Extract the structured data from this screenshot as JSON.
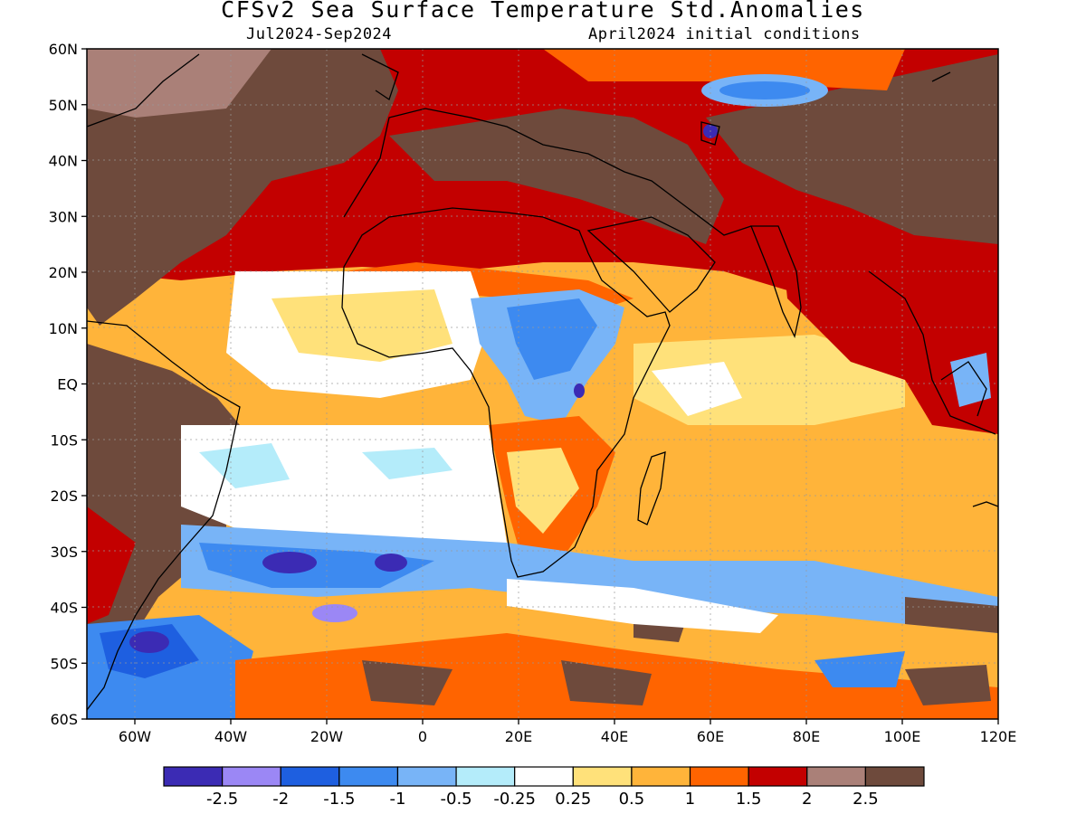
{
  "header": {
    "title": "CFSv2 Sea Surface Temperature Std.Anomalies",
    "period": "Jul2024-Sep2024",
    "initial_conditions": "April2024 initial conditions"
  },
  "axes": {
    "lat_labels": [
      "60N",
      "50N",
      "40N",
      "30N",
      "20N",
      "10N",
      "EQ",
      "10S",
      "20S",
      "30S",
      "40S",
      "50S",
      "60S"
    ],
    "lon_labels": [
      "60W",
      "40W",
      "20W",
      "0",
      "20E",
      "40E",
      "60E",
      "80E",
      "100E",
      "120E"
    ],
    "lon_range": [
      -70,
      120
    ],
    "lat_range": [
      -60,
      60
    ]
  },
  "colorbar": {
    "labels": [
      "-2.5",
      "-2",
      "-1.5",
      "-1",
      "-0.5",
      "-0.25",
      "0.25",
      "0.5",
      "1",
      "1.5",
      "2",
      "2.5"
    ],
    "colors": [
      "#3b2bb4",
      "#9b87f5",
      "#1e5fe0",
      "#3d8af0",
      "#78b4f7",
      "#b4ecfa",
      "#ffffff",
      "#ffe17a",
      "#ffb43a",
      "#ff6400",
      "#c30000",
      "#aa8078",
      "#6e4a3c"
    ]
  }
}
